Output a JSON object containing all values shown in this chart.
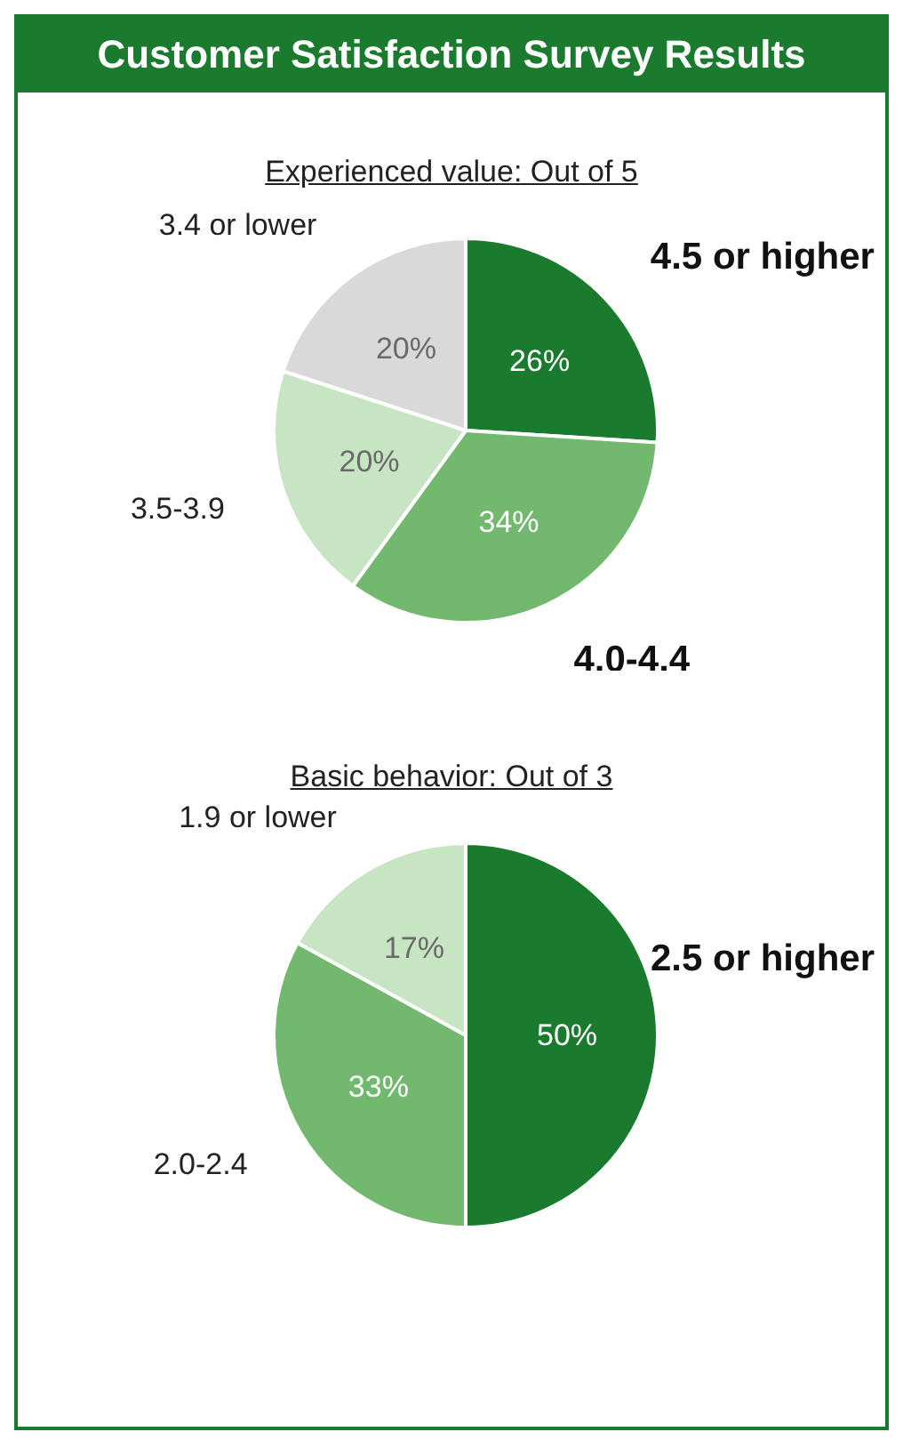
{
  "chart_data": [
    {
      "type": "pie",
      "title": "Customer Satisfaction Survey Results",
      "subtitle": "Experienced value: Out of 5",
      "categories": [
        "4.5 or higher",
        "4.0-4.4",
        "3.5-3.9",
        "3.4 or lower"
      ],
      "values": [
        26,
        34,
        20,
        20
      ],
      "value_labels": [
        "26%",
        "34%",
        "20%",
        "20%"
      ],
      "colors": [
        "#1a7a2e",
        "#72b86f",
        "#c8e5c3",
        "#d9d9d9"
      ],
      "legend": false
    },
    {
      "type": "pie",
      "title": "Basic behavior: Out of 3",
      "categories": [
        "2.5 or higher",
        "2.0-2.4",
        "1.9 or lower"
      ],
      "values": [
        50,
        33,
        17
      ],
      "value_labels": [
        "50%",
        "33%",
        "17%"
      ],
      "colors": [
        "#1a7a2e",
        "#72b86f",
        "#c8e5c3"
      ],
      "legend": false
    }
  ]
}
